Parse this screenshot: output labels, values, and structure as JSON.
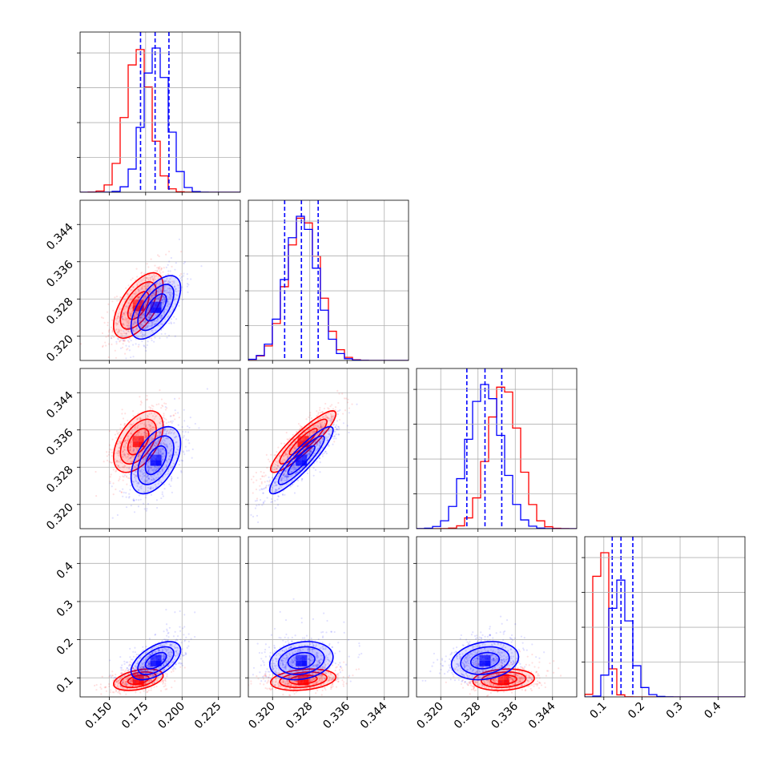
{
  "chart_data": {
    "type": "corner",
    "title": "",
    "params": [
      {
        "ticks": [
          0.15,
          0.175,
          0.2,
          0.225
        ],
        "tick_labels": [
          "0.150",
          "0.175",
          "0.200",
          "0.225"
        ],
        "range": [
          0.13,
          0.24
        ]
      },
      {
        "ticks": [
          0.32,
          0.328,
          0.336,
          0.344
        ],
        "tick_labels": [
          "0.320",
          "0.328",
          "0.336",
          "0.344"
        ],
        "range": [
          0.3148,
          0.3492
        ]
      },
      {
        "ticks": [
          0.32,
          0.328,
          0.336,
          0.344
        ],
        "tick_labels": [
          "0.320",
          "0.328",
          "0.336",
          "0.344"
        ],
        "range": [
          0.3148,
          0.3492
        ]
      },
      {
        "ticks": [
          0.1,
          0.2,
          0.3,
          0.4
        ],
        "tick_labels": [
          "0.1",
          "0.2",
          "0.3",
          "0.4"
        ],
        "range": [
          0.05,
          0.47
        ]
      }
    ],
    "series": [
      {
        "color": "#ff0000",
        "means": [
          0.17,
          0.3266,
          0.3335,
          0.095
        ],
        "sigmas": [
          0.0085,
          0.0035,
          0.0033,
          0.014
        ],
        "correlations": {
          "1-0": 0.6,
          "2-0": 0.5,
          "2-1": 0.9,
          "3-0": 0.4,
          "3-1": 0.25,
          "3-2": 0.15
        }
      },
      {
        "color": "#0000ff",
        "means": [
          0.182,
          0.3262,
          0.3295,
          0.145
        ],
        "sigmas": [
          0.0085,
          0.0034,
          0.0036,
          0.025
        ],
        "correlations": {
          "1-0": 0.6,
          "2-0": 0.5,
          "2-1": 0.9,
          "3-0": 0.55,
          "3-1": 0.2,
          "3-2": 0.2
        }
      }
    ],
    "quantile_lines": [
      [
        0.1715,
        0.1815,
        0.191
      ],
      [
        0.3226,
        0.3262,
        0.3298
      ],
      [
        0.3256,
        0.3295,
        0.3331
      ],
      [
        0.122,
        0.145,
        0.176
      ]
    ],
    "quantile_line_color": "#0000ff",
    "grid": true
  }
}
